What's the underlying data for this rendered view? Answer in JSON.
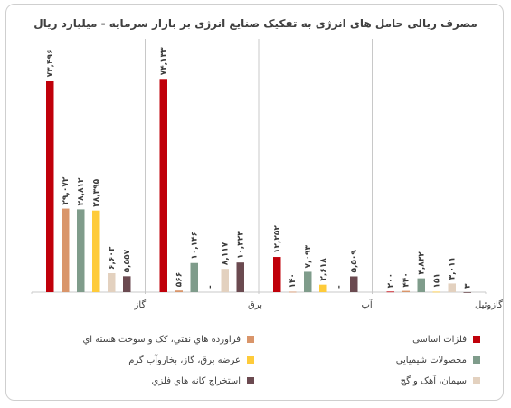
{
  "chart_data": {
    "type": "bar",
    "title": "مصرف ریالی حامل های انرژی به تفکیک صنایع انرژی بر بازار سرمایه - میلیارد ریال",
    "categories": [
      "گاز",
      "برق",
      "آب",
      "بخار، مازوت و گازوئیل"
    ],
    "series": [
      {
        "name": "فلزات اساسی",
        "color": "#c0000a",
        "values": [
          73496,
          74133,
          12252,
          200
        ],
        "labels": [
          "۷۳,۴۹۶",
          "۷۴,۱۳۳",
          "۱۲,۲۵۲",
          "۲۰۰"
        ]
      },
      {
        "name": "فراورده هاي نفتي، كک و سوخت هسته اي",
        "color": "#d9956a",
        "values": [
          29072,
          566,
          140,
          440
        ],
        "labels": [
          "۲۹,۰۷۲",
          "۵۶۶",
          "۱۴۰",
          "۴۴۰"
        ]
      },
      {
        "name": "محصولات شيميايي",
        "color": "#7f9c8b",
        "values": [
          28812,
          10146,
          7093,
          4832
        ],
        "labels": [
          "۲۸,۸۱۲",
          "۱۰,۱۴۶",
          "۷,۰۹۳",
          "۴,۸۳۲"
        ]
      },
      {
        "name": "عرضه برق، گاز، بخاروآب گرم",
        "color": "#fecb3a",
        "values": [
          28395,
          0,
          2618,
          151
        ],
        "labels": [
          "۲۸,۳۹۵",
          "-",
          "۲,۶۱۸",
          "۱۵۱"
        ]
      },
      {
        "name": "سيمان، آهک و گچ",
        "color": "#e3d1bf",
        "values": [
          6603,
          8117,
          0,
          3011
        ],
        "labels": [
          "۶,۶۰۳",
          "۸,۱۱۷",
          "-",
          "۳,۰۱۱"
        ]
      },
      {
        "name": "استخراج کانه هاي فلزي",
        "color": "#6b4a50",
        "values": [
          5557,
          10323,
          5509,
          3
        ],
        "labels": [
          "۵,۵۵۷",
          "۱۰,۳۲۳",
          "۵,۵۰۹",
          "۳"
        ]
      }
    ],
    "ylim": [
      0,
      78000
    ],
    "grid": false,
    "legend_position": "bottom"
  }
}
